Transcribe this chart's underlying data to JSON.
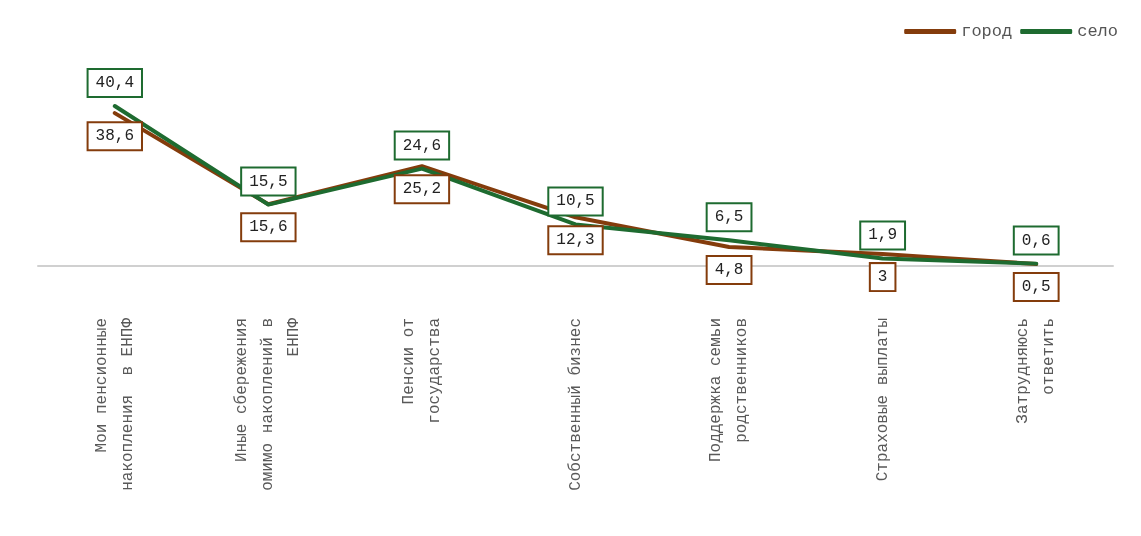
{
  "chart_data": {
    "type": "line",
    "categories": [
      "Мои пенсионные\nнакопления  в ЕНПФ",
      "Иные сбережения\nомимо накоплений в\nЕНПФ",
      "Пенсии от\nгосударства",
      "Собственный бизнес",
      "Поддержка семьи\nродственников",
      "Страховые выплаты",
      "Затрудняюсь\nответить"
    ],
    "series": [
      {
        "name": "город",
        "color": "#843c0c",
        "values": [
          38.6,
          15.6,
          25.2,
          12.3,
          4.8,
          3,
          0.5
        ],
        "value_labels": [
          "38,6",
          "15,6",
          "25,2",
          "12,3",
          "4,8",
          "3",
          "0,5"
        ]
      },
      {
        "name": "село",
        "color": "#1e6b30",
        "values": [
          40.4,
          15.5,
          24.6,
          10.5,
          6.5,
          1.9,
          0.6
        ],
        "value_labels": [
          "40,4",
          "15,5",
          "24,6",
          "10,5",
          "6,5",
          "1,9",
          "0,6"
        ]
      }
    ],
    "legend": "top right",
    "grid": false,
    "marker": "none",
    "line_style": "solid"
  }
}
